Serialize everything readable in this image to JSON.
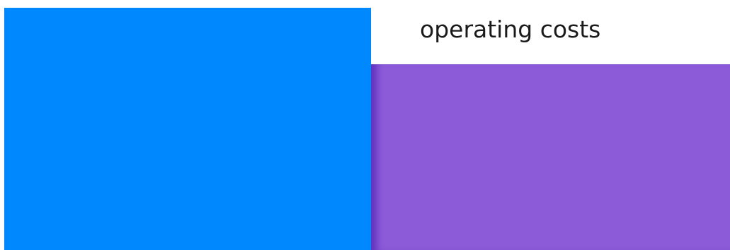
{
  "colors": {
    "background": "#ffffff",
    "left_block": "#0088ff",
    "right_block": "#8c5bd8",
    "text": "#1a1a1a"
  },
  "labels": {
    "operating_costs": "operating costs"
  }
}
